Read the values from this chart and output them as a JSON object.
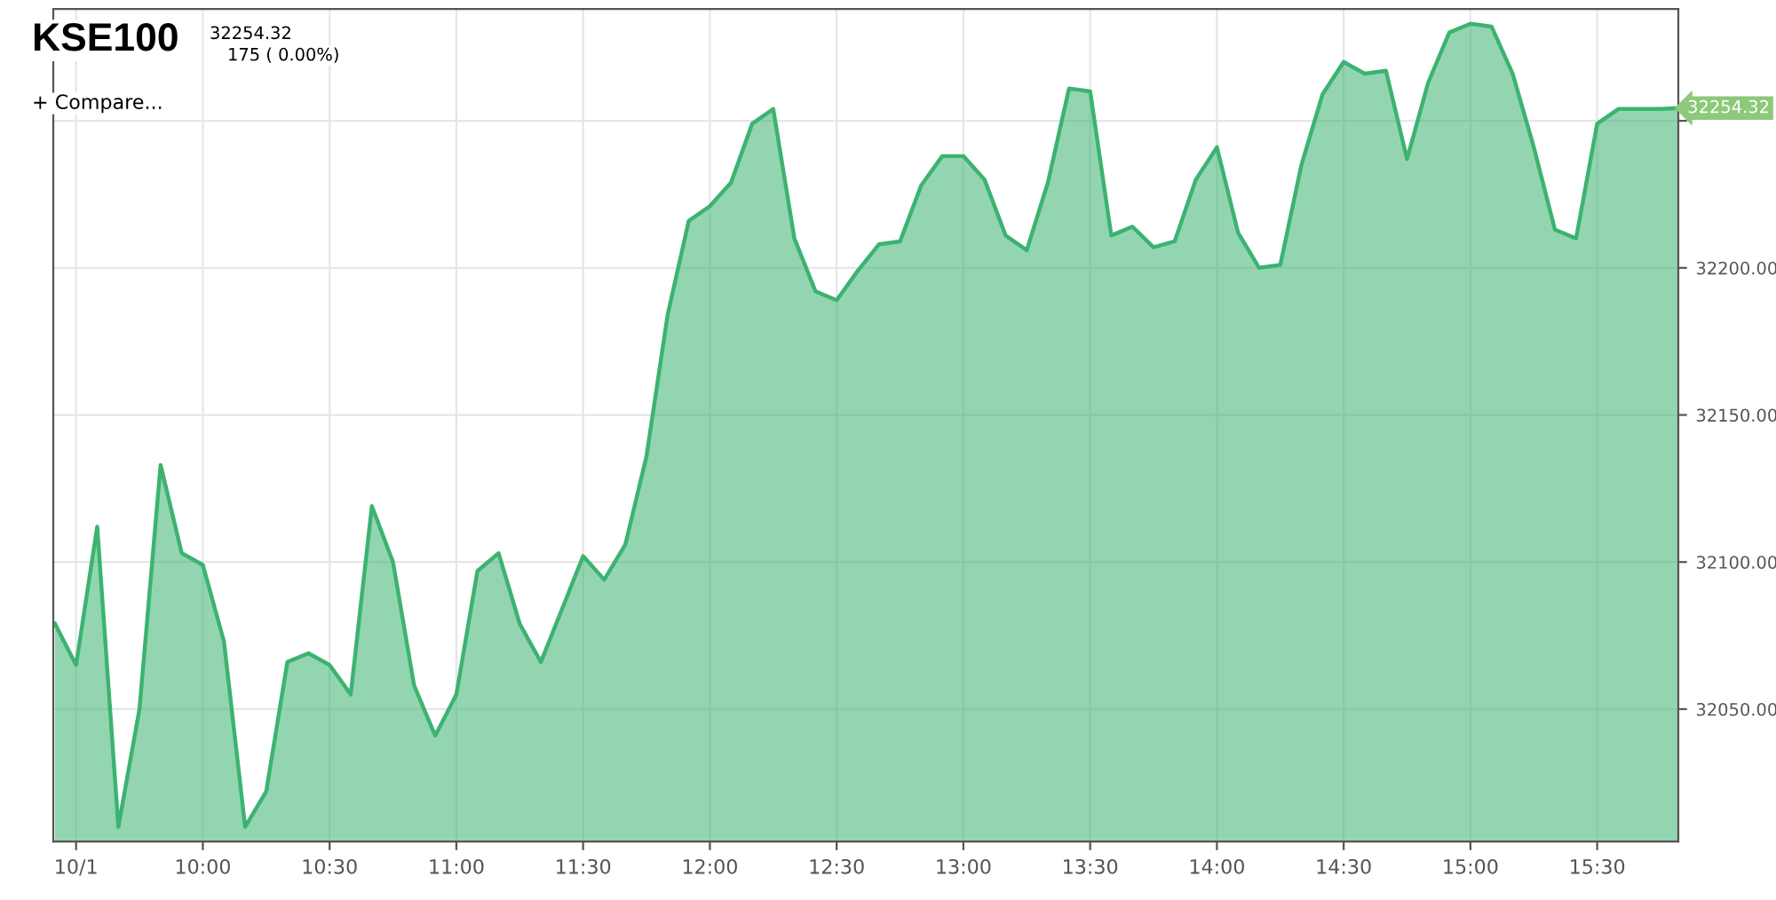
{
  "chart_data": {
    "type": "area",
    "title": "KSE100",
    "annotations": [
      "32254.32",
      "175 ( 0.00%)",
      "+ Compare...",
      {
        "text": "32254.32",
        "x": 15.8167,
        "y": 32254.32
      }
    ],
    "x": [
      9.4167,
      9.5,
      9.5833,
      9.6667,
      9.75,
      9.8333,
      9.9167,
      10,
      10.0833,
      10.1667,
      10.25,
      10.3333,
      10.4167,
      10.5,
      10.5833,
      10.6667,
      10.75,
      10.8333,
      10.9167,
      11,
      11.0833,
      11.1667,
      11.25,
      11.3333,
      11.4167,
      11.5,
      11.5833,
      11.6667,
      11.75,
      11.8333,
      11.9167,
      12,
      12.0833,
      12.1667,
      12.25,
      12.3333,
      12.4167,
      12.5,
      12.5833,
      12.6667,
      12.75,
      12.8333,
      12.9167,
      13,
      13.0833,
      13.1667,
      13.25,
      13.3333,
      13.4167,
      13.5,
      13.5833,
      13.6667,
      13.75,
      13.8333,
      13.9167,
      14,
      14.0833,
      14.1667,
      14.25,
      14.3333,
      14.4167,
      14.5,
      14.5833,
      14.6667,
      14.75,
      14.8333,
      14.9167,
      15,
      15.0833,
      15.1667,
      15.25,
      15.3333,
      15.4167,
      15.5,
      15.5833,
      15.6667,
      15.75,
      15.8167
    ],
    "series": [
      {
        "color": "#3cb371",
        "values": [
          32079,
          32065,
          32112,
          32010,
          32050,
          32133,
          32103,
          32099,
          32073,
          32010,
          32022,
          32066,
          32069,
          32065,
          32055,
          32119,
          32100,
          32058,
          32041,
          32055,
          32097,
          32103,
          32079,
          32066,
          32084,
          32102,
          32094,
          32106,
          32136,
          32184,
          32216,
          32221,
          32229,
          32249,
          32254,
          32210,
          32192,
          32189,
          32199,
          32208,
          32209,
          32228,
          32238,
          32238,
          32230,
          32211,
          32206,
          32229,
          32261,
          32260,
          32211,
          32214,
          32207,
          32209,
          32230,
          32241,
          32212,
          32200,
          32201,
          32235,
          32259,
          32270,
          32266,
          32267,
          32237,
          32263,
          32280,
          32283,
          32282,
          32266,
          32241,
          32213,
          32210,
          32249,
          32254,
          32254,
          32254,
          32254.32
        ]
      }
    ],
    "xlim": [
      9.41,
      15.82
    ],
    "ylim": [
      32005,
      32288
    ],
    "xticks": [
      {
        "value": 9.5,
        "label": "10/1"
      },
      {
        "value": 10,
        "label": "10:00"
      },
      {
        "value": 10.5,
        "label": "10:30"
      },
      {
        "value": 11,
        "label": "11:00"
      },
      {
        "value": 11.5,
        "label": "11:30"
      },
      {
        "value": 12,
        "label": "12:00"
      },
      {
        "value": 12.5,
        "label": "12:30"
      },
      {
        "value": 13,
        "label": "13:00"
      },
      {
        "value": 13.5,
        "label": "13:30"
      },
      {
        "value": 14,
        "label": "14:00"
      },
      {
        "value": 14.5,
        "label": "14:30"
      },
      {
        "value": 15,
        "label": "15:00"
      },
      {
        "value": 15.5,
        "label": "15:30"
      }
    ],
    "yticks": [
      {
        "value": 32050,
        "label": "32050.00"
      },
      {
        "value": 32100,
        "label": "32100.00"
      },
      {
        "value": 32150,
        "label": "32150.00"
      },
      {
        "value": 32200,
        "label": "32200.00"
      },
      {
        "value": 32250,
        "label": null
      }
    ],
    "grid": true,
    "legend": false
  }
}
